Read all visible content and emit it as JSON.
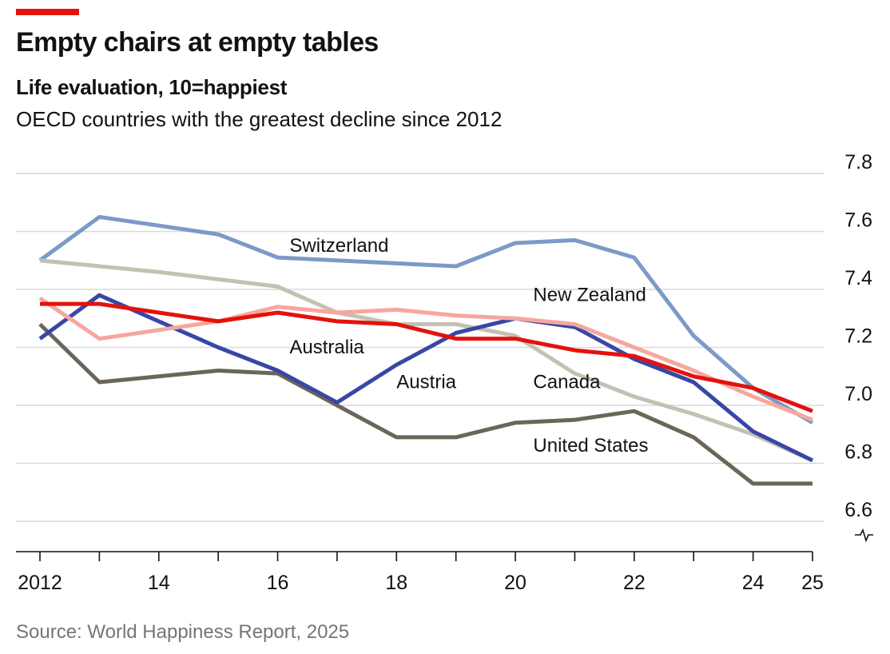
{
  "colors": {
    "accent": "#e3120b",
    "grid": "#d9d9d9",
    "axis": "#121212"
  },
  "header": {
    "title": "Empty chairs at empty tables",
    "subtitle": "Life evaluation, 10=happiest",
    "description": "OECD countries with the greatest decline since 2012"
  },
  "footer": {
    "source": "Source: World Happiness Report, 2025"
  },
  "chart_data": {
    "type": "line",
    "title": "Empty chairs at empty tables",
    "subtitle": "Life evaluation, 10=happiest",
    "ylim": [
      6.55,
      7.85
    ],
    "y_ticks": [
      6.6,
      6.8,
      7.0,
      7.2,
      7.4,
      7.6,
      7.8
    ],
    "y_tick_labels": [
      "6.6",
      "6.8",
      "7.0",
      "7.2",
      "7.4",
      "7.6",
      "7.8"
    ],
    "y_axis_break": true,
    "xlim": [
      2012,
      2025
    ],
    "x_ticks": [
      2012,
      2013,
      2014,
      2015,
      2016,
      2017,
      2018,
      2019,
      2020,
      2021,
      2022,
      2023,
      2024,
      2025
    ],
    "x_tick_labels": [
      {
        "x": 2012,
        "label": "2012"
      },
      {
        "x": 2014,
        "label": "14"
      },
      {
        "x": 2016,
        "label": "16"
      },
      {
        "x": 2018,
        "label": "18"
      },
      {
        "x": 2020,
        "label": "20"
      },
      {
        "x": 2022,
        "label": "22"
      },
      {
        "x": 2024,
        "label": "24"
      },
      {
        "x": 2025,
        "label": "25"
      }
    ],
    "grid": true,
    "legend": "inline labels",
    "series": [
      {
        "name": "Switzerland",
        "color": "#7b9ac8",
        "points": [
          [
            2012,
            7.5
          ],
          [
            2013,
            7.65
          ],
          [
            2014,
            7.62
          ],
          [
            2015,
            7.59
          ],
          [
            2016,
            7.51
          ],
          [
            2017,
            7.5
          ],
          [
            2018,
            7.49
          ],
          [
            2019,
            7.48
          ],
          [
            2020,
            7.56
          ],
          [
            2021,
            7.57
          ],
          [
            2022,
            7.51
          ],
          [
            2023,
            7.24
          ],
          [
            2024,
            7.06
          ],
          [
            2025,
            6.94
          ]
        ],
        "label_at": [
          2016.2,
          7.53
        ]
      },
      {
        "name": "Canada",
        "color": "#c4c1b2",
        "points": [
          [
            2012,
            7.5
          ],
          [
            2014,
            7.46
          ],
          [
            2016,
            7.41
          ],
          [
            2017,
            7.32
          ],
          [
            2018,
            7.28
          ],
          [
            2019,
            7.28
          ],
          [
            2020,
            7.24
          ],
          [
            2021,
            7.11
          ],
          [
            2022,
            7.03
          ],
          [
            2023,
            6.97
          ],
          [
            2024,
            6.9
          ],
          [
            2025,
            6.81
          ]
        ],
        "label_at": [
          2020.3,
          7.06
        ]
      },
      {
        "name": "United States",
        "color": "#6b6657",
        "points": [
          [
            2012,
            7.28
          ],
          [
            2013,
            7.08
          ],
          [
            2014,
            7.1
          ],
          [
            2015,
            7.12
          ],
          [
            2016,
            7.11
          ],
          [
            2017,
            7.0
          ],
          [
            2018,
            6.89
          ],
          [
            2019,
            6.89
          ],
          [
            2020,
            6.94
          ],
          [
            2021,
            6.95
          ],
          [
            2022,
            6.98
          ],
          [
            2023,
            6.89
          ],
          [
            2024,
            6.73
          ],
          [
            2025,
            6.73
          ]
        ],
        "label_at": [
          2020.3,
          6.84
        ]
      },
      {
        "name": "Austria",
        "color": "#3847a6",
        "points": [
          [
            2012,
            7.23
          ],
          [
            2013,
            7.38
          ],
          [
            2014,
            7.29
          ],
          [
            2015,
            7.2
          ],
          [
            2016,
            7.12
          ],
          [
            2017,
            7.01
          ],
          [
            2018,
            7.14
          ],
          [
            2019,
            7.25
          ],
          [
            2020,
            7.3
          ],
          [
            2021,
            7.27
          ],
          [
            2022,
            7.16
          ],
          [
            2023,
            7.08
          ],
          [
            2024,
            6.91
          ],
          [
            2025,
            6.81
          ]
        ],
        "label_at": [
          2018.0,
          7.06
        ]
      },
      {
        "name": "New Zealand",
        "color": "#f6a79d",
        "points": [
          [
            2012,
            7.37
          ],
          [
            2013,
            7.23
          ],
          [
            2014,
            7.26
          ],
          [
            2015,
            7.29
          ],
          [
            2016,
            7.34
          ],
          [
            2017,
            7.32
          ],
          [
            2018,
            7.33
          ],
          [
            2019,
            7.31
          ],
          [
            2020,
            7.3
          ],
          [
            2021,
            7.28
          ],
          [
            2022,
            7.2
          ],
          [
            2023,
            7.12
          ],
          [
            2024,
            7.03
          ],
          [
            2025,
            6.95
          ]
        ],
        "label_at": [
          2020.3,
          7.36
        ]
      },
      {
        "name": "Australia",
        "color": "#e3120b",
        "points": [
          [
            2012,
            7.35
          ],
          [
            2013,
            7.35
          ],
          [
            2014,
            7.32
          ],
          [
            2015,
            7.29
          ],
          [
            2016,
            7.32
          ],
          [
            2017,
            7.29
          ],
          [
            2018,
            7.28
          ],
          [
            2019,
            7.23
          ],
          [
            2020,
            7.23
          ],
          [
            2021,
            7.19
          ],
          [
            2022,
            7.17
          ],
          [
            2023,
            7.1
          ],
          [
            2024,
            7.06
          ],
          [
            2025,
            6.98
          ]
        ],
        "label_at": [
          2016.2,
          7.18
        ]
      }
    ]
  }
}
